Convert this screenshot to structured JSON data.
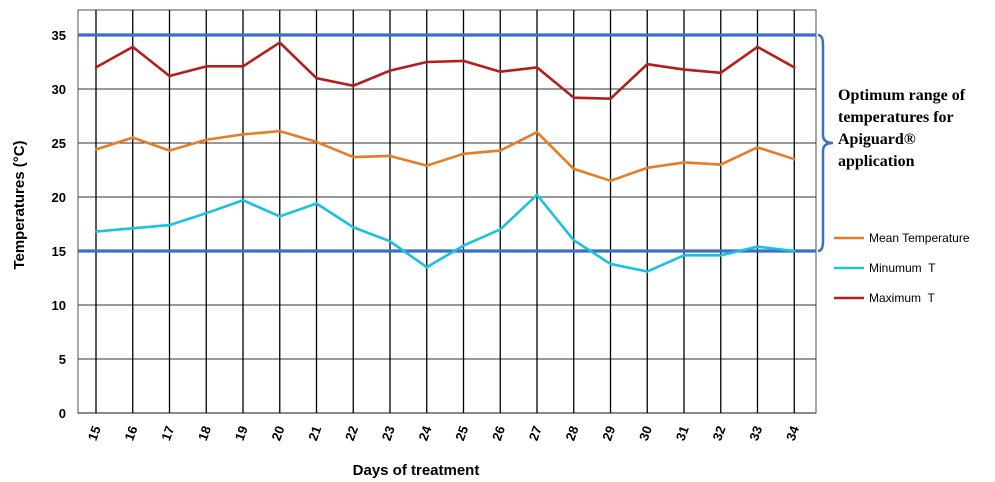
{
  "chart_data": {
    "type": "line",
    "xlabel": "Days of treatment",
    "ylabel": "Temperatures (°C)",
    "x": [
      "15",
      "16",
      "17",
      "18",
      "19",
      "20",
      "21",
      "22",
      "23",
      "24",
      "25",
      "26",
      "27",
      "28",
      "29",
      "30",
      "31",
      "32",
      "33",
      "34"
    ],
    "ylim": [
      0,
      35
    ],
    "yticks": [
      0,
      5,
      10,
      15,
      20,
      25,
      30,
      35
    ],
    "grid": true,
    "legend_placement": "right",
    "series": [
      {
        "name": "Mean Temperature",
        "color": "#e87c24",
        "values": [
          24.4,
          25.5,
          24.3,
          25.3,
          25.8,
          26.1,
          25.1,
          23.7,
          23.8,
          22.9,
          24.0,
          24.3,
          26.0,
          22.6,
          21.5,
          22.7,
          23.2,
          23.0,
          24.6,
          23.5
        ]
      },
      {
        "name": "Minumum  T",
        "color": "#19c3e0",
        "values": [
          16.8,
          17.1,
          17.4,
          18.5,
          19.7,
          18.2,
          19.4,
          17.2,
          15.9,
          13.5,
          15.5,
          17.0,
          20.2,
          16.0,
          13.8,
          13.1,
          14.6,
          14.6,
          15.4,
          15.0
        ]
      },
      {
        "name": "Maximum  T",
        "color": "#b41e1e",
        "values": [
          32.0,
          33.9,
          31.2,
          32.1,
          32.1,
          34.3,
          31.0,
          30.3,
          31.7,
          32.5,
          32.6,
          31.6,
          32.0,
          29.2,
          29.1,
          32.3,
          31.8,
          31.5,
          33.9,
          32.0
        ]
      }
    ],
    "optimum_range": {
      "min": 15,
      "max": 35,
      "color": "#3a6fc4"
    },
    "annotation": {
      "lines": [
        "Optimum range of",
        "temperatures for",
        "Apiguard®",
        "application"
      ],
      "bracket_color": "#3a6fc4"
    }
  }
}
